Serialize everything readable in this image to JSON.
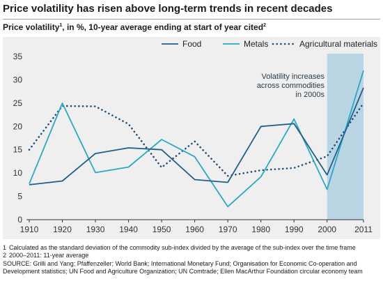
{
  "title": "Price volatility has risen above long-term trends in recent decades",
  "subtitle": {
    "text_a": "Price volatility",
    "sup_a": "1",
    "text_b": ", in %, 10-year average ending at start of year cited",
    "sup_b": "2"
  },
  "chart_data": {
    "type": "line",
    "title": "",
    "xlabel": "",
    "ylabel": "",
    "x": [
      1910,
      1920,
      1930,
      1940,
      1950,
      1960,
      1970,
      1980,
      1990,
      2000,
      2011
    ],
    "x_tick_labels": [
      "1910",
      "1920",
      "1930",
      "1940",
      "1950",
      "1960",
      "1970",
      "1980",
      "1990",
      "2000",
      "2011"
    ],
    "ylim": [
      0,
      35
    ],
    "y_ticks": [
      0,
      5,
      10,
      15,
      20,
      25,
      30,
      35
    ],
    "grid": false,
    "legend_placement": "top-right",
    "series": [
      {
        "name": "Food",
        "color": "#1f5f8b",
        "style": "solid",
        "values": [
          7.5,
          8.3,
          14.2,
          15.4,
          15.0,
          8.6,
          8.0,
          20.0,
          20.6,
          9.6,
          28.3
        ]
      },
      {
        "name": "Metals",
        "color": "#2aa9c4",
        "style": "solid",
        "values": [
          7.7,
          25.0,
          10.1,
          11.3,
          17.2,
          13.5,
          2.8,
          9.2,
          21.6,
          6.5,
          32.0
        ]
      },
      {
        "name": "Agricultural materials",
        "color": "#1f4f7a",
        "style": "dotted",
        "values": [
          15.0,
          24.4,
          24.3,
          20.5,
          11.2,
          16.8,
          9.4,
          10.6,
          11.1,
          13.6,
          25.0
        ]
      }
    ],
    "highlight": {
      "x_from": 2000,
      "x_to": 2011,
      "color": "#b9d4e2",
      "annotation": [
        "Volatility increases",
        "across commodities",
        "in 2000s"
      ]
    }
  },
  "footnotes": [
    {
      "num": "1",
      "text": "Calculated as the standard deviation of the commodity sub-index divided by the average of the sub-index over the time frame"
    },
    {
      "num": "2",
      "text": "2000–2011: 11-year average"
    }
  ],
  "source": "SOURCE: Grilli and Yang; Pfaffenzeller; World Bank; International Monetary Fund; Organisation for Economic Co-operation and Development statistics; UN Food and Agriculture Organization; UN Comtrade; Ellen MacArthur Foundation circular economy team"
}
